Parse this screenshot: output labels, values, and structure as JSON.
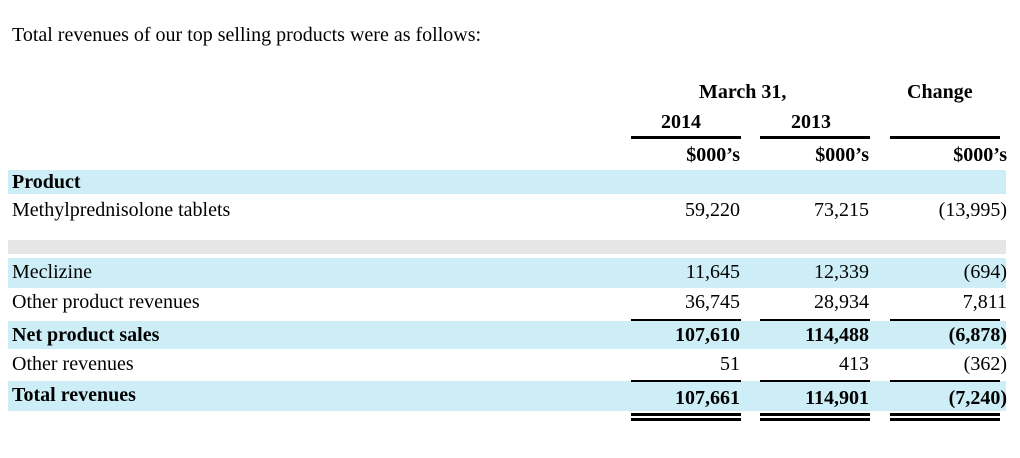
{
  "intro": "Total revenues of our top selling products were as follows:",
  "header": {
    "period_label": "March 31,",
    "change_label": "Change",
    "year_1": "2014",
    "year_2": "2013",
    "unit_1": "$000’s",
    "unit_2": "$000’s",
    "unit_3": "$000’s"
  },
  "table": {
    "section_label": "Product",
    "rows": [
      {
        "label": "Methylprednisolone tablets",
        "v2014": "59,220",
        "v2013": "73,215",
        "change": "(13,995)"
      },
      {
        "label": "Meclizine",
        "v2014": "11,645",
        "v2013": "12,339",
        "change": "(694)"
      },
      {
        "label": "Other product revenues",
        "v2014": "36,745",
        "v2013": "28,934",
        "change": "7,811"
      },
      {
        "label": "Net product sales",
        "v2014": "107,610",
        "v2013": "114,488",
        "change": "(6,878)"
      },
      {
        "label": "Other revenues",
        "v2014": "51",
        "v2013": "413",
        "change": "(362)"
      },
      {
        "label": "Total revenues",
        "v2014": "107,661",
        "v2013": "114,901",
        "change": "(7,240)"
      }
    ]
  },
  "colors": {
    "row_highlight": "#cdeef6",
    "row_separator": "#e6e6e6"
  }
}
